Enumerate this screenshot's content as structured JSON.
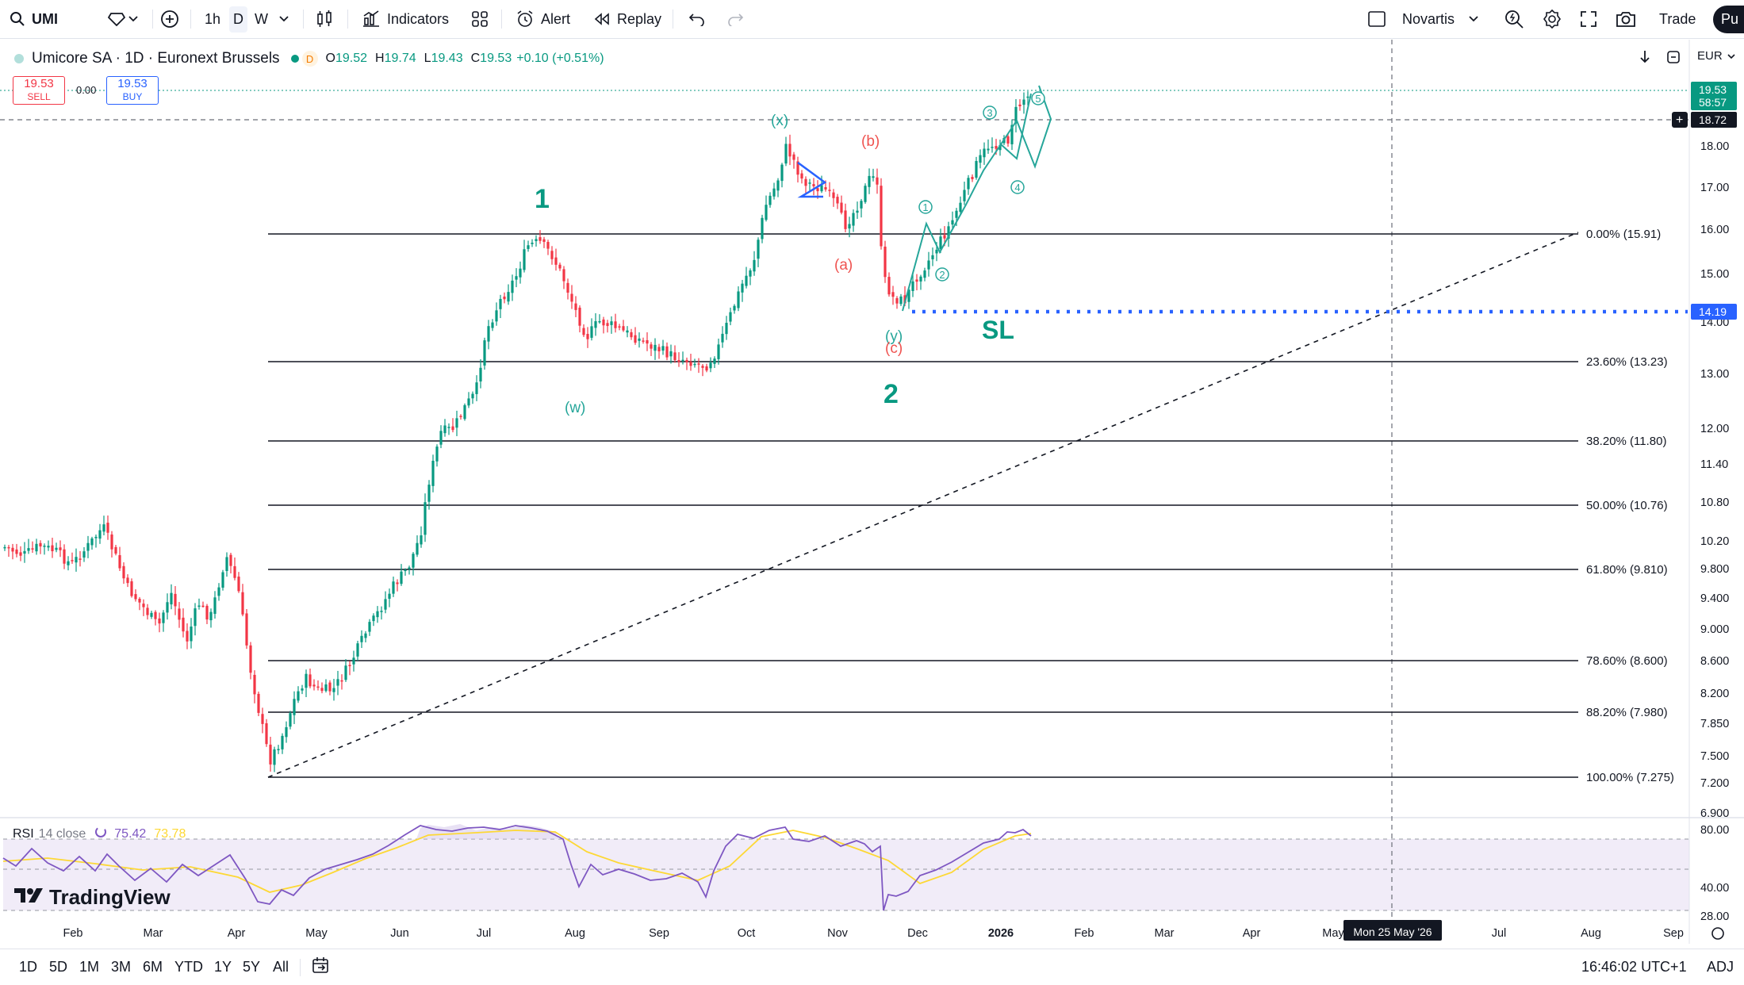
{
  "toolbar": {
    "symbol": "UMI",
    "intervals": [
      "1h",
      "D",
      "W"
    ],
    "active_interval": "D",
    "indicators_label": "Indicators",
    "alert_label": "Alert",
    "replay_label": "Replay",
    "layout_name": "Novartis",
    "trade_label": "Trade",
    "publish_label": "Pu"
  },
  "legend": {
    "title": "Umicore SA · 1D · Euronext Brussels",
    "status_badge": "D",
    "open_label": "O",
    "open": "19.52",
    "high_label": "H",
    "high": "19.74",
    "low_label": "L",
    "low": "19.43",
    "close_label": "C",
    "close": "19.53",
    "change": "+0.10 (+0.51%)"
  },
  "trade_buttons": {
    "sell_price": "19.53",
    "sell_label": "SELL",
    "spread": "0.00",
    "buy_price": "19.53",
    "buy_label": "BUY"
  },
  "currency": "EUR",
  "price_axis": {
    "ticks": [
      "18.00",
      "17.00",
      "16.00",
      "15.00",
      "14.00",
      "13.00",
      "12.00",
      "11.40",
      "10.80",
      "10.20",
      "9.800",
      "9.400",
      "9.000",
      "8.600",
      "8.200",
      "7.850",
      "7.500",
      "7.200",
      "6.900"
    ],
    "last_price": "19.53",
    "countdown": "58:57",
    "crosshair_price": "18.72",
    "stop_price": "14.19"
  },
  "time_axis": {
    "labels": [
      "Feb",
      "Mar",
      "Apr",
      "May",
      "Jun",
      "Jul",
      "Aug",
      "Sep",
      "Oct",
      "Nov",
      "Dec",
      "2026",
      "Feb",
      "Mar",
      "Apr",
      "May",
      "Jul",
      "Aug",
      "Sep"
    ],
    "crosshair_date": "Mon 25 May '26"
  },
  "fibonacci": [
    {
      "label": "0.00% (15.91)"
    },
    {
      "label": "23.60% (13.23)"
    },
    {
      "label": "38.20% (11.80)"
    },
    {
      "label": "50.00% (10.76)"
    },
    {
      "label": "61.80% (9.810)"
    },
    {
      "label": "78.60% (8.600)"
    },
    {
      "label": "88.20% (7.980)"
    },
    {
      "label": "100.00% (7.275)"
    }
  ],
  "wave_labels": {
    "w1": "1",
    "w2": "2",
    "w": "(w)",
    "x": "(x)",
    "y": "(y)",
    "a": "(a)",
    "b": "(b)",
    "c": "(c)",
    "m1": "1",
    "m2": "2",
    "m3": "3",
    "m4": "4",
    "m5": "5",
    "sl": "SL"
  },
  "rsi": {
    "name": "RSI",
    "params": "14 close",
    "value": "75.42",
    "ma_value": "73.78",
    "ticks": [
      "80.00",
      "40.00",
      "28.00"
    ]
  },
  "brand": "TradingView",
  "bottom_bar": {
    "ranges": [
      "1D",
      "5D",
      "1M",
      "3M",
      "6M",
      "YTD",
      "1Y",
      "5Y",
      "All"
    ],
    "clock": "16:46:02 UTC+1",
    "adj": "ADJ"
  },
  "colors": {
    "up": "#089981",
    "down": "#f23645",
    "wave_green": "#26a69a",
    "wave_red": "#ef5350",
    "stop_line": "#2962ff",
    "rsi_line": "#7e57c2",
    "rsi_ma": "#fdd835"
  }
}
